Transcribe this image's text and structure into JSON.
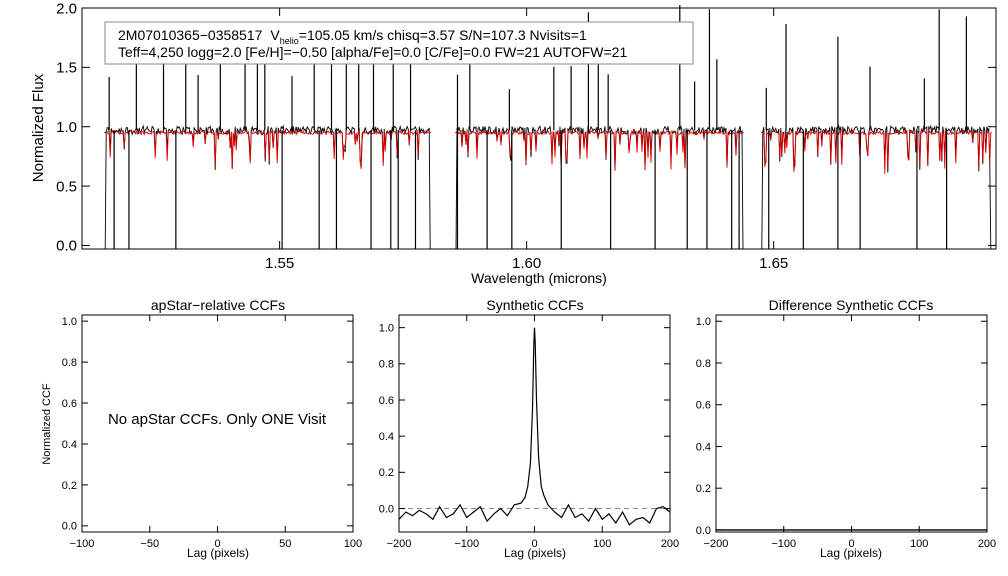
{
  "chart_data": [
    {
      "id": "spectrum",
      "type": "line",
      "title": "",
      "xlabel": "Wavelength (microns)",
      "ylabel": "Normalized Flux",
      "xlim": [
        1.51,
        1.695
      ],
      "ylim": [
        -0.03,
        2.0
      ],
      "xticks": [
        1.55,
        1.6,
        1.65
      ],
      "xtick_labels": [
        "1.55",
        "1.60",
        "1.65"
      ],
      "yticks": [
        0.0,
        0.5,
        1.0,
        1.5,
        2.0
      ],
      "ytick_labels": [
        "0.0",
        "0.5",
        "1.0",
        "1.5",
        "2.0"
      ],
      "chips": [
        [
          1.5145,
          1.5808
        ],
        [
          1.5855,
          1.644
        ],
        [
          1.6474,
          1.6943
        ]
      ],
      "series": [
        {
          "name": "observed",
          "color": "#000000",
          "continuum": 0.97
        },
        {
          "name": "model",
          "color": "#dd0000",
          "continuum": 0.95
        }
      ],
      "emission_spikes_x": [
        1.5155,
        1.521,
        1.5265,
        1.531,
        1.5335,
        1.538,
        1.543,
        1.5455,
        1.547,
        1.5525,
        1.557,
        1.5605,
        1.5635,
        1.566,
        1.569,
        1.573,
        1.5765,
        1.586,
        1.5885,
        1.5965,
        1.6055,
        1.609,
        1.6125,
        1.6145,
        1.6165,
        1.631,
        1.634,
        1.637,
        1.6385,
        1.6485,
        1.6525,
        1.663,
        1.6695,
        1.6805,
        1.6835,
        1.689
      ],
      "absorption_spikes_x": [
        1.5165,
        1.5195,
        1.529,
        1.5505,
        1.558,
        1.5615,
        1.5685,
        1.5725,
        1.574,
        1.5775,
        1.586,
        1.592,
        1.597,
        1.607,
        1.617,
        1.626,
        1.6325,
        1.6365,
        1.6415,
        1.643,
        1.649,
        1.656,
        1.663,
        1.6675,
        1.679,
        1.685
      ],
      "annotation": {
        "object_id": "2M07010365−0358517",
        "vhelio_symbol": "V",
        "vhelio_sub": "helio",
        "line1_rest": "=105.05 km/s  chisq=3.57  S/N=107.3  Nvisits=1",
        "line2": "Teff=4,250 logg=2.0 [Fe/H]=−0.50 [alpha/Fe]=0.0 [C/Fe]=0.0 FW=21 AUTOFW=21"
      }
    },
    {
      "id": "apstar_ccf",
      "type": "line",
      "title": "apStar−relative CCFs",
      "xlabel": "Lag (pixels)",
      "ylabel": "Normalized CCF",
      "xlim": [
        -100,
        100
      ],
      "ylim": [
        -0.03,
        1.03
      ],
      "xticks": [
        -100,
        -50,
        0,
        50,
        100
      ],
      "xtick_labels": [
        "−100",
        "−50",
        "0",
        "50",
        "100"
      ],
      "yticks": [
        0.0,
        0.2,
        0.4,
        0.6,
        0.8,
        1.0
      ],
      "ytick_labels": [
        "0.0",
        "0.2",
        "0.4",
        "0.6",
        "0.8",
        "1.0"
      ],
      "message": "No apStar CCFs.  Only ONE Visit",
      "series": []
    },
    {
      "id": "synthetic_ccf",
      "type": "line",
      "title": "Synthetic CCFs",
      "xlabel": "Lag (pixels)",
      "ylabel": "",
      "xlim": [
        -200,
        200
      ],
      "ylim": [
        -0.13,
        1.07
      ],
      "xticks": [
        -200,
        -100,
        0,
        100,
        200
      ],
      "xtick_labels": [
        "−200",
        "−100",
        "0",
        "100",
        "200"
      ],
      "yticks": [
        0.0,
        0.2,
        0.4,
        0.6,
        0.8,
        1.0
      ],
      "ytick_labels": [
        "0.0",
        "0.2",
        "0.4",
        "0.6",
        "0.8",
        "1.0"
      ],
      "zero_line": 0.0,
      "series": [
        {
          "name": "synthetic",
          "color": "#000000",
          "x": [
            -200,
            -190,
            -180,
            -170,
            -160,
            -150,
            -140,
            -130,
            -120,
            -110,
            -100,
            -90,
            -80,
            -70,
            -60,
            -50,
            -40,
            -30,
            -20,
            -14,
            -10,
            -6,
            -3,
            -1,
            0,
            1,
            3,
            6,
            10,
            14,
            20,
            30,
            40,
            50,
            60,
            70,
            80,
            90,
            100,
            110,
            120,
            130,
            140,
            150,
            160,
            170,
            180,
            190,
            200
          ],
          "y": [
            -0.06,
            -0.02,
            -0.04,
            -0.01,
            -0.03,
            -0.06,
            0.01,
            -0.05,
            -0.03,
            0.02,
            -0.05,
            -0.02,
            0.01,
            -0.07,
            -0.03,
            0.0,
            -0.04,
            0.02,
            0.03,
            0.06,
            0.12,
            0.25,
            0.55,
            0.9,
            1.0,
            0.92,
            0.6,
            0.28,
            0.12,
            0.07,
            0.02,
            -0.02,
            -0.05,
            0.02,
            -0.05,
            -0.03,
            -0.07,
            0.0,
            -0.06,
            -0.03,
            -0.08,
            -0.02,
            -0.09,
            -0.06,
            -0.05,
            -0.08,
            0.0,
            0.01,
            -0.02
          ]
        }
      ]
    },
    {
      "id": "difference_ccf",
      "type": "line",
      "title": "Difference Synthetic CCFs",
      "xlabel": "Lag (pixels)",
      "ylabel": "",
      "xlim": [
        -200,
        200
      ],
      "ylim": [
        -0.01,
        1.03
      ],
      "xticks": [
        -200,
        -100,
        0,
        100,
        200
      ],
      "xtick_labels": [
        "−200",
        "−100",
        "0",
        "100",
        "200"
      ],
      "yticks": [
        0.0,
        0.2,
        0.4,
        0.6,
        0.8,
        1.0
      ],
      "ytick_labels": [
        "0.0",
        "0.2",
        "0.4",
        "0.6",
        "0.8",
        "1.0"
      ],
      "series": [
        {
          "name": "difference",
          "color": "#000000",
          "x": [
            -200,
            200
          ],
          "y": [
            0.0,
            0.0
          ]
        }
      ]
    }
  ]
}
